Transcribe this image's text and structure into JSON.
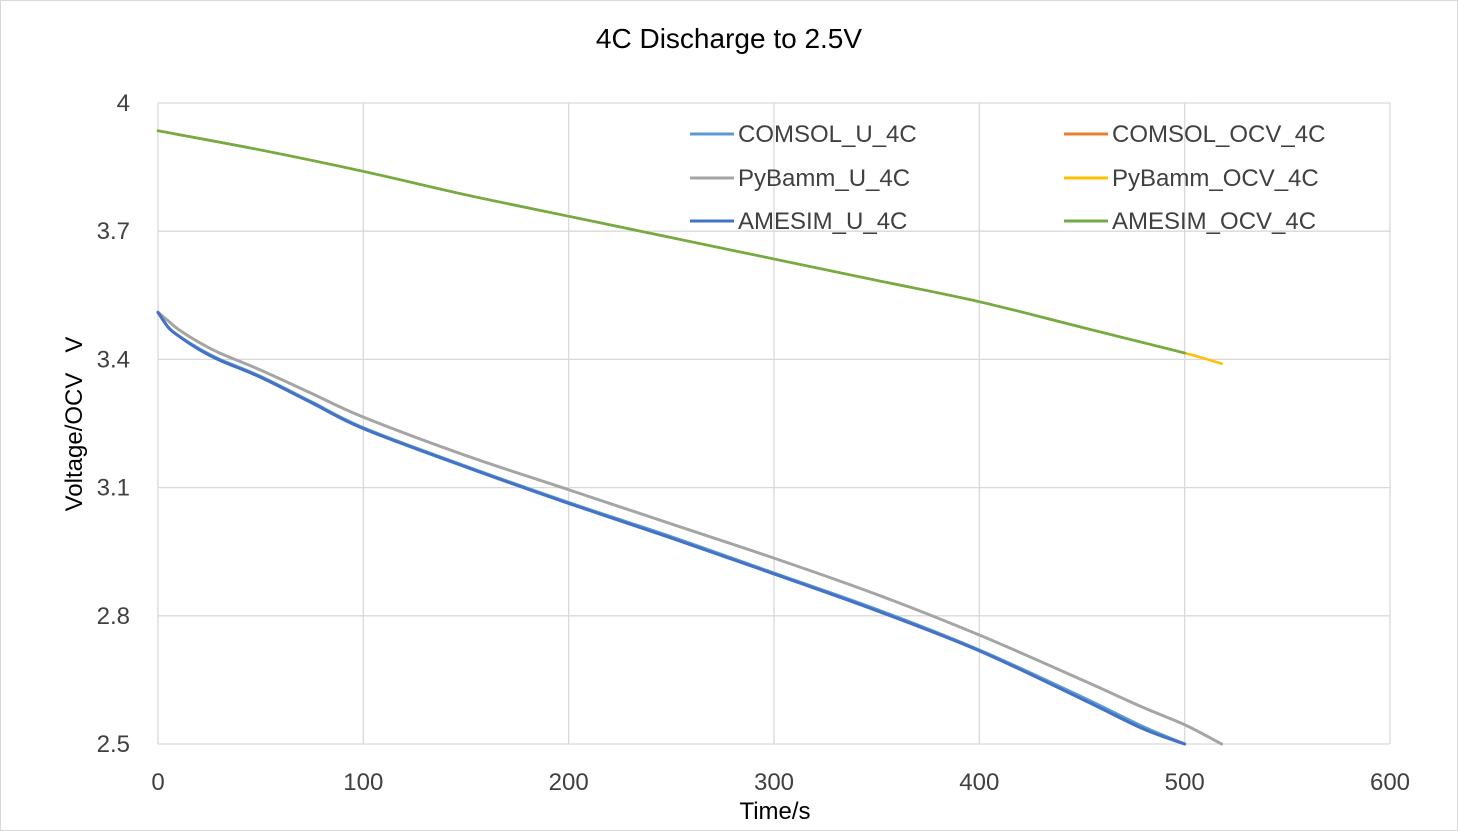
{
  "chart_data": {
    "type": "line",
    "title": "4C Discharge to 2.5V",
    "xlabel": "Time/s",
    "ylabel": "Voltage/OCV   V",
    "xlim": [
      0,
      600
    ],
    "ylim": [
      2.5,
      4.0
    ],
    "xticks": [
      "0",
      "100",
      "200",
      "300",
      "400",
      "500",
      "600"
    ],
    "yticks": [
      "2.5",
      "2.8",
      "3.1",
      "3.4",
      "3.7",
      "4"
    ],
    "grid": true,
    "legend_position": "top-right",
    "series": [
      {
        "name": "COMSOL_U_4C",
        "color": "#5B9BD5",
        "x": [
          0,
          5,
          10,
          20,
          30,
          50,
          75,
          100,
          150,
          200,
          250,
          300,
          350,
          400,
          450,
          480,
          500
        ],
        "y": [
          3.51,
          3.475,
          3.455,
          3.425,
          3.4,
          3.36,
          3.3,
          3.24,
          3.15,
          3.065,
          2.985,
          2.9,
          2.815,
          2.72,
          2.61,
          2.54,
          2.5
        ]
      },
      {
        "name": "COMSOL_OCV_4C",
        "color": "#ED7D31",
        "x": [
          0,
          50,
          100,
          150,
          200,
          250,
          300,
          350,
          400,
          450,
          500
        ],
        "y": [
          3.935,
          3.89,
          3.84,
          3.785,
          3.735,
          3.685,
          3.635,
          3.585,
          3.535,
          3.475,
          3.415
        ]
      },
      {
        "name": "PyBamm_U_4C",
        "color": "#A5A5A5",
        "x": [
          0,
          5,
          10,
          20,
          30,
          50,
          75,
          100,
          150,
          200,
          250,
          300,
          350,
          400,
          450,
          480,
          500,
          518
        ],
        "y": [
          3.51,
          3.49,
          3.47,
          3.44,
          3.415,
          3.375,
          3.32,
          3.265,
          3.175,
          3.095,
          3.015,
          2.935,
          2.85,
          2.755,
          2.65,
          2.585,
          2.545,
          2.5
        ]
      },
      {
        "name": "PyBamm_OCV_4C",
        "color": "#FFC000",
        "x": [
          0,
          50,
          100,
          150,
          200,
          250,
          300,
          350,
          400,
          450,
          500,
          518
        ],
        "y": [
          3.935,
          3.89,
          3.84,
          3.785,
          3.735,
          3.685,
          3.635,
          3.585,
          3.535,
          3.475,
          3.415,
          3.39
        ]
      },
      {
        "name": "AMESIM_U_4C",
        "color": "#4472C4",
        "x": [
          0,
          5,
          10,
          20,
          30,
          50,
          75,
          100,
          150,
          200,
          250,
          300,
          350,
          400,
          450,
          480,
          500
        ],
        "y": [
          3.51,
          3.475,
          3.455,
          3.423,
          3.398,
          3.358,
          3.298,
          3.238,
          3.148,
          3.063,
          2.982,
          2.898,
          2.812,
          2.718,
          2.605,
          2.535,
          2.5
        ]
      },
      {
        "name": "AMESIM_OCV_4C",
        "color": "#70AD47",
        "x": [
          0,
          50,
          100,
          150,
          200,
          250,
          300,
          350,
          400,
          450,
          500
        ],
        "y": [
          3.935,
          3.89,
          3.84,
          3.785,
          3.735,
          3.685,
          3.635,
          3.585,
          3.535,
          3.475,
          3.415
        ]
      }
    ]
  }
}
